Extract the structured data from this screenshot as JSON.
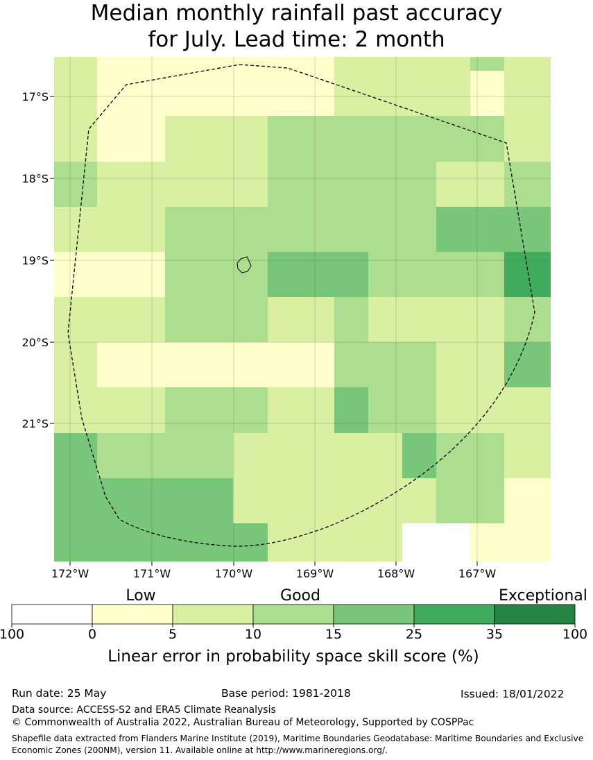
{
  "title": {
    "line1": "Median monthly rainfall past accuracy",
    "line2": "for July. Lead time: 2 month"
  },
  "map": {
    "lon_ticks": [
      "172°W",
      "171°W",
      "170°W",
      "169°W",
      "168°W",
      "167°W"
    ],
    "lat_ticks": [
      "17°S",
      "18°S",
      "19°S",
      "20°S",
      "21°S"
    ],
    "cells": [
      [
        "5-10",
        "0-5",
        "0-5",
        "0-5",
        "0-5",
        "0-5",
        "5-10",
        "5-10",
        "5-10",
        "5-10",
        "10-15",
        "5-10"
      ],
      [
        "5-10",
        "0-5",
        "0-5",
        "0-5",
        "0-5",
        "0-5",
        "5-10",
        "5-10",
        "5-10",
        "5-10",
        "0-5",
        "5-10"
      ],
      [
        "5-10",
        "0-5",
        "5-10",
        "5-10",
        "10-15",
        "10-15",
        "10-15",
        "10-15",
        "10-15",
        "10-15",
        "10-15",
        "5-10"
      ],
      [
        "10-15",
        "5-10",
        "5-10",
        "5-10",
        "10-15",
        "10-15",
        "10-15",
        "10-15",
        "10-15",
        "5-10",
        "5-10",
        "10-15"
      ],
      [
        "5-10",
        "5-10",
        "10-15",
        "10-15",
        "10-15",
        "10-15",
        "10-15",
        "10-15",
        "10-15",
        "15-25",
        "15-25",
        "15-25"
      ],
      [
        "0-5",
        "0-5",
        "10-15",
        "10-15",
        "15-25",
        "15-25",
        "15-25",
        "10-15",
        "10-15",
        "10-15",
        "10-15",
        "25-35"
      ],
      [
        "5-10",
        "5-10",
        "10-15",
        "10-15",
        "5-10",
        "5-10",
        "10-15",
        "5-10",
        "5-10",
        "5-10",
        "5-10",
        "10-15"
      ],
      [
        "5-10",
        "0-5",
        "0-5",
        "0-5",
        "0-5",
        "0-5",
        "10-15",
        "10-15",
        "10-15",
        "5-10",
        "5-10",
        "15-25"
      ],
      [
        "5-10",
        "5-10",
        "10-15",
        "10-15",
        "5-10",
        "5-10",
        "15-25",
        "10-15",
        "10-15",
        "5-10",
        "5-10",
        "5-10"
      ],
      [
        "15-25",
        "10-15",
        "10-15",
        "5-10",
        "5-10",
        "5-10",
        "5-10",
        "5-10",
        "15-25",
        "10-15",
        "10-15",
        "5-10"
      ],
      [
        "15-25",
        "15-25",
        "15-25",
        "5-10",
        "5-10",
        "5-10",
        "5-10",
        "5-10",
        "5-10",
        "10-15",
        "10-15",
        "0-5"
      ],
      [
        "15-25",
        "15-25",
        "15-25",
        "15-25",
        "5-10",
        "5-10",
        "5-10",
        "5-10",
        "none",
        "none",
        "0-5",
        "0-5"
      ]
    ]
  },
  "legend": {
    "categories": [
      "Low",
      "Good",
      "Exceptional"
    ],
    "bins": [
      "none",
      "0-5",
      "5-10",
      "10-15",
      "15-25",
      "25-35",
      "35-100"
    ],
    "colors": [
      "#ffffff",
      "#ffffcc",
      "#d9f0a3",
      "#addd8e",
      "#78c679",
      "#41ab5d",
      "#238443"
    ],
    "tick_labels": [
      "100",
      "0",
      "5",
      "10",
      "15",
      "25",
      "35",
      "100"
    ],
    "label": "Linear error in probability space skill score (%)"
  },
  "footer": {
    "run_date": "Run date: 25 May",
    "base_period": "Base period: 1981-2018",
    "issued": "Issued: 18/01/2022",
    "data_source": "Data source: ACCESS-S2 and ERA5 Climate Reanalysis",
    "copyright": "© Commonwealth of Australia 2022, Australian Bureau of Meteorology, Supported by COSPPac",
    "shapefile": "Shapefile data extracted from Flanders Marine Institute (2019), Maritime Boundaries Geodatabase: Maritime Boundaries and Exclusive Economic Zones (200NM), version 11. Available online at http://www.marineregions.org/."
  }
}
